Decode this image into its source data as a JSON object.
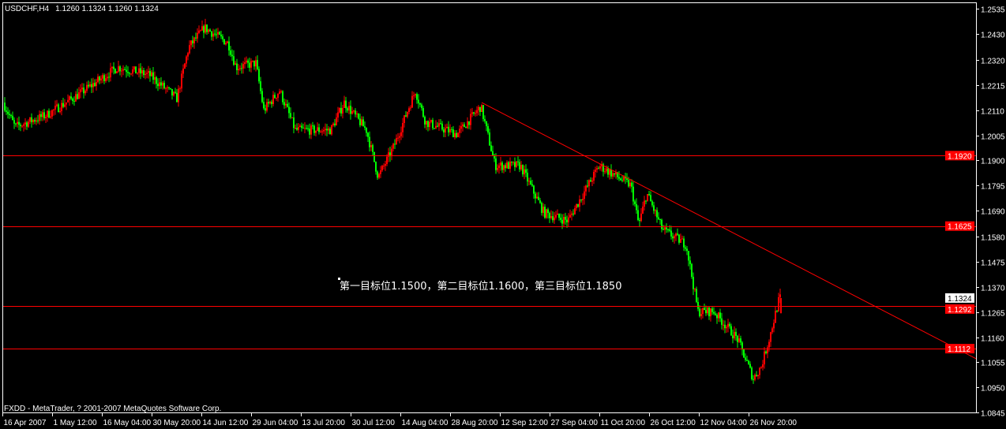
{
  "header": {
    "symbol": "USDCHF,H4",
    "ohlc": "1.1260 1.1324 1.1260 1.1324"
  },
  "footer": {
    "copyright": "FXDD - MetaTrader, ? 2001-2007 MetaQuotes Software Corp."
  },
  "annotation": "第一目标位1.1500，第二目标位1.1600，第三目标位1.1850",
  "chart_data": {
    "type": "candlestick",
    "symbol": "USDCHF",
    "timeframe": "H4",
    "ylim": [
      1.0845,
      1.2535
    ],
    "y_ticks": [
      "1.2535",
      "1.2430",
      "1.2320",
      "1.2215",
      "1.2110",
      "1.2005",
      "1.1900",
      "1.1795",
      "1.1690",
      "1.1580",
      "1.1475",
      "1.1370",
      "1.1265",
      "1.1160",
      "1.1055",
      "1.0950",
      "1.0845"
    ],
    "x_ticks": [
      "16 Apr 2007",
      "1 May 12:00",
      "16 May 04:00",
      "30 May 20:00",
      "14 Jun 12:00",
      "29 Jun 04:00",
      "13 Jul 20:00",
      "30 Jul 12:00",
      "14 Aug 04:00",
      "28 Aug 20:00",
      "12 Sep 12:00",
      "27 Sep 04:00",
      "11 Oct 20:00",
      "26 Oct 12:00",
      "12 Nov 04:00",
      "26 Nov 20:00"
    ],
    "price_path": [
      {
        "bar": 0,
        "close": 1.2142
      },
      {
        "bar": 15,
        "close": 1.204
      },
      {
        "bar": 55,
        "close": 1.209
      },
      {
        "bar": 95,
        "close": 1.2175
      },
      {
        "bar": 145,
        "close": 1.229
      },
      {
        "bar": 185,
        "close": 1.2258
      },
      {
        "bar": 220,
        "close": 1.2159
      },
      {
        "bar": 235,
        "close": 1.2373
      },
      {
        "bar": 255,
        "close": 1.2456
      },
      {
        "bar": 285,
        "close": 1.239
      },
      {
        "bar": 295,
        "close": 1.229
      },
      {
        "bar": 320,
        "close": 1.2307
      },
      {
        "bar": 330,
        "close": 1.211
      },
      {
        "bar": 350,
        "close": 1.2192
      },
      {
        "bar": 370,
        "close": 1.2027
      },
      {
        "bar": 415,
        "close": 1.2027
      },
      {
        "bar": 432,
        "close": 1.2142
      },
      {
        "bar": 460,
        "close": 1.2027
      },
      {
        "bar": 475,
        "close": 1.183
      },
      {
        "bar": 495,
        "close": 1.196
      },
      {
        "bar": 522,
        "close": 1.2192
      },
      {
        "bar": 535,
        "close": 1.206
      },
      {
        "bar": 575,
        "close": 1.201
      },
      {
        "bar": 605,
        "close": 1.2126
      },
      {
        "bar": 623,
        "close": 1.1878
      },
      {
        "bar": 655,
        "close": 1.1878
      },
      {
        "bar": 685,
        "close": 1.168
      },
      {
        "bar": 715,
        "close": 1.1647
      },
      {
        "bar": 755,
        "close": 1.1878
      },
      {
        "bar": 795,
        "close": 1.1795
      },
      {
        "bar": 805,
        "close": 1.163
      },
      {
        "bar": 815,
        "close": 1.1763
      },
      {
        "bar": 835,
        "close": 1.161
      },
      {
        "bar": 865,
        "close": 1.1548
      },
      {
        "bar": 880,
        "close": 1.1267
      },
      {
        "bar": 900,
        "close": 1.1267
      },
      {
        "bar": 930,
        "close": 1.1152
      },
      {
        "bar": 950,
        "close": 1.0987
      },
      {
        "bar": 960,
        "close": 1.1037
      },
      {
        "bar": 970,
        "close": 1.1152
      },
      {
        "bar": 983,
        "close": 1.1324
      }
    ],
    "last_bar": {
      "open": 1.126,
      "high": 1.1324,
      "low": 1.126,
      "close": 1.1324
    },
    "horizontal_lines": [
      {
        "price": 1.192,
        "label": "1.1920",
        "color": "#ff0000"
      },
      {
        "price": 1.1625,
        "label": "1.1625",
        "color": "#ff0000"
      },
      {
        "price": 1.1292,
        "label": "1.1292",
        "color": "#ff0000"
      },
      {
        "price": 1.1112,
        "label": "1.1112",
        "color": "#ff0000"
      }
    ],
    "current_price": {
      "price": 1.1324,
      "label": "1.1324"
    },
    "trendline": {
      "from": {
        "bar": 605,
        "price": 1.2142
      },
      "to_price_at_right_edge": 1.107,
      "color": "#ff0000"
    },
    "colors": {
      "background": "#000000",
      "up": "#ff0000",
      "down": "#00ff00",
      "axis": "#ffffff"
    },
    "grid": false
  }
}
